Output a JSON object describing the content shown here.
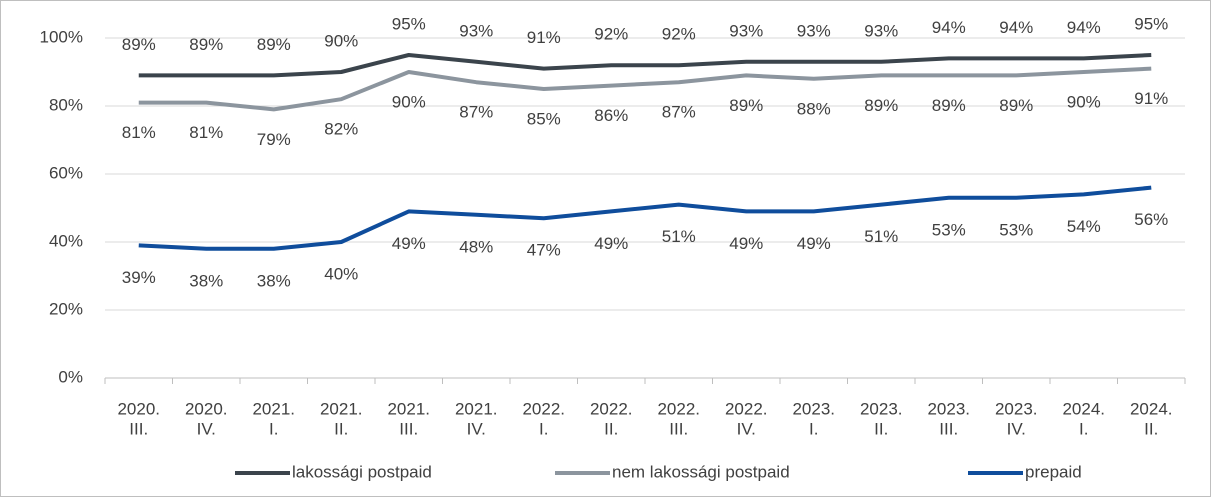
{
  "chart_data": {
    "type": "line",
    "categories": [
      [
        "2020.",
        "III."
      ],
      [
        "2020.",
        "IV."
      ],
      [
        "2021.",
        "I."
      ],
      [
        "2021.",
        "II."
      ],
      [
        "2021.",
        "III."
      ],
      [
        "2021.",
        "IV."
      ],
      [
        "2022.",
        "I."
      ],
      [
        "2022.",
        "II."
      ],
      [
        "2022.",
        "III."
      ],
      [
        "2022.",
        "IV."
      ],
      [
        "2023.",
        "I."
      ],
      [
        "2023.",
        "II."
      ],
      [
        "2023.",
        "III."
      ],
      [
        "2023.",
        "IV."
      ],
      [
        "2024.",
        "I."
      ],
      [
        "2024.",
        "II."
      ]
    ],
    "series": [
      {
        "name": "lakossági postpaid",
        "color": "#3b444c",
        "values": [
          89,
          89,
          89,
          90,
          95,
          93,
          91,
          92,
          92,
          93,
          93,
          93,
          94,
          94,
          94,
          95
        ],
        "value_labels": [
          "89%",
          "89%",
          "89%",
          "90%",
          "95%",
          "93%",
          "91%",
          "92%",
          "92%",
          "93%",
          "93%",
          "93%",
          "94%",
          "94%",
          "94%",
          "95%"
        ]
      },
      {
        "name": "nem lakossági postpaid",
        "color": "#8c959e",
        "values": [
          81,
          81,
          79,
          82,
          90,
          87,
          85,
          86,
          87,
          89,
          88,
          89,
          89,
          89,
          90,
          91
        ],
        "value_labels": [
          "81%",
          "81%",
          "79%",
          "82%",
          "90%",
          "87%",
          "85%",
          "86%",
          "87%",
          "89%",
          "88%",
          "89%",
          "89%",
          "89%",
          "90%",
          "91%"
        ]
      },
      {
        "name": "prepaid",
        "color": "#0f4d9c",
        "values": [
          39,
          38,
          38,
          40,
          49,
          48,
          47,
          49,
          51,
          49,
          49,
          51,
          53,
          53,
          54,
          56
        ],
        "value_labels": [
          "39%",
          "38%",
          "38%",
          "40%",
          "49%",
          "48%",
          "47%",
          "49%",
          "51%",
          "49%",
          "49%",
          "51%",
          "53%",
          "53%",
          "54%",
          "56%"
        ]
      }
    ],
    "ylim": [
      0,
      100
    ],
    "yticks": [
      {
        "value": 0,
        "label": "0%"
      },
      {
        "value": 20,
        "label": "20%"
      },
      {
        "value": 40,
        "label": "40%"
      },
      {
        "value": 60,
        "label": "60%"
      },
      {
        "value": 80,
        "label": "80%"
      },
      {
        "value": 100,
        "label": "100%"
      }
    ],
    "grid": true
  }
}
